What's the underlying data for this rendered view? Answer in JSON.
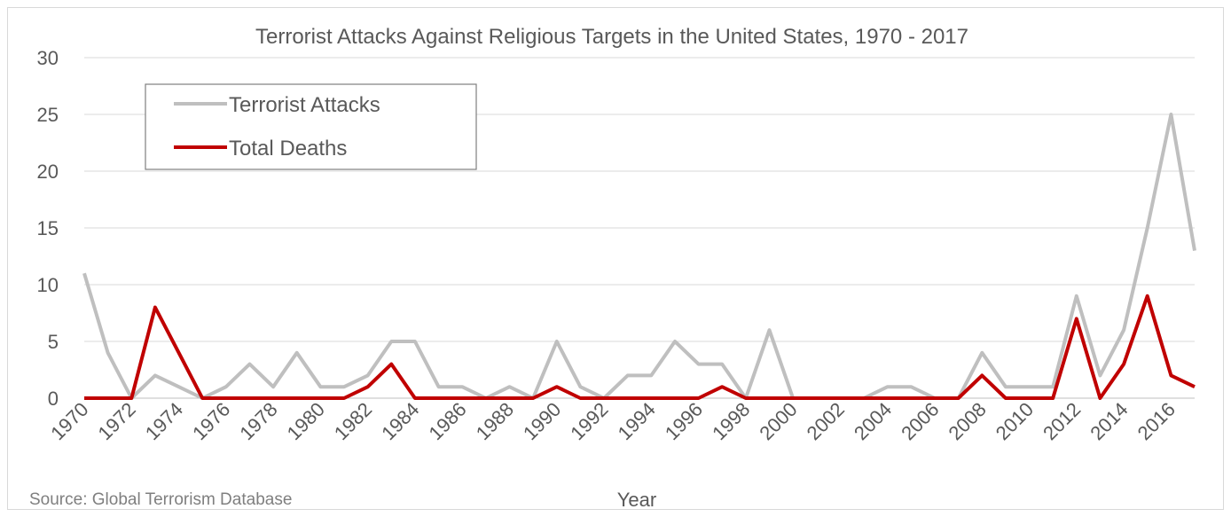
{
  "chart_data": {
    "type": "line",
    "title": "Terrorist Attacks Against Religious Targets in the United States, 1970 - 2017",
    "xlabel": "Year",
    "ylabel": "",
    "source": "Source: Global Terrorism Database",
    "ylim": [
      0,
      30
    ],
    "yticks": [
      0,
      5,
      10,
      15,
      20,
      25,
      30
    ],
    "grid": true,
    "legend_position": "top-left",
    "x": [
      1970,
      1971,
      1972,
      1973,
      1974,
      1975,
      1976,
      1977,
      1978,
      1979,
      1980,
      1981,
      1982,
      1983,
      1984,
      1985,
      1986,
      1987,
      1988,
      1989,
      1990,
      1991,
      1992,
      1993,
      1994,
      1995,
      1996,
      1997,
      1998,
      1999,
      2000,
      2001,
      2002,
      2003,
      2004,
      2005,
      2006,
      2007,
      2008,
      2009,
      2010,
      2011,
      2012,
      2013,
      2014,
      2015,
      2016,
      2017
    ],
    "x_tick_labels": [
      "1970",
      "1972",
      "1974",
      "1976",
      "1978",
      "1980",
      "1982",
      "1984",
      "1986",
      "1988",
      "1990",
      "1992",
      "1994",
      "1996",
      "1998",
      "2000",
      "2002",
      "2004",
      "2006",
      "2008",
      "2010",
      "2012",
      "2014",
      "2016"
    ],
    "series": [
      {
        "name": "Terrorist Attacks",
        "color": "#bfbfbf",
        "values": [
          11,
          4,
          0,
          2,
          1,
          0,
          1,
          3,
          1,
          4,
          1,
          1,
          2,
          5,
          5,
          1,
          1,
          0,
          1,
          0,
          5,
          1,
          0,
          2,
          2,
          5,
          3,
          3,
          0,
          6,
          0,
          0,
          0,
          0,
          1,
          1,
          0,
          0,
          4,
          1,
          1,
          1,
          9,
          2,
          6,
          15,
          25,
          13
        ]
      },
      {
        "name": "Total Deaths",
        "color": "#c00000",
        "values": [
          0,
          0,
          0,
          8,
          4,
          0,
          0,
          0,
          0,
          0,
          0,
          0,
          1,
          3,
          0,
          0,
          0,
          0,
          0,
          0,
          1,
          0,
          0,
          0,
          0,
          0,
          0,
          1,
          0,
          0,
          0,
          0,
          0,
          0,
          0,
          0,
          0,
          0,
          2,
          0,
          0,
          0,
          7,
          0,
          3,
          9,
          2,
          1
        ]
      }
    ]
  }
}
